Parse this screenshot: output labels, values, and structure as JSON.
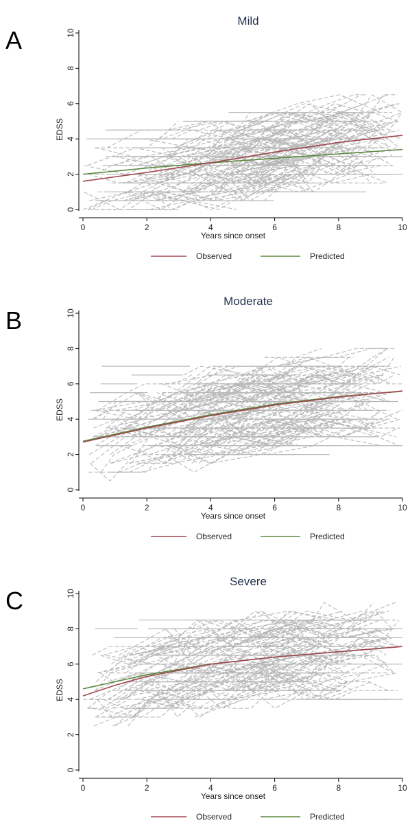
{
  "panels": [
    {
      "letter": "A",
      "chart_data": {
        "type": "line",
        "title": "Mild",
        "xlabel": "Years since onset",
        "ylabel": "EDSS",
        "xlim": [
          0,
          10
        ],
        "ylim": [
          0,
          10
        ],
        "xticks": [
          0,
          2,
          4,
          6,
          8,
          10
        ],
        "yticks": [
          0,
          2,
          4,
          6,
          8,
          10
        ],
        "series": [
          {
            "name": "Observed",
            "color": "#a0474f",
            "x": [
              0,
              2,
              4,
              6,
              8,
              10
            ],
            "y": [
              1.6,
              2.1,
              2.65,
              3.25,
              3.8,
              4.2
            ]
          },
          {
            "name": "Predicted",
            "color": "#5a8a3e",
            "x": [
              0,
              2,
              4,
              6,
              8,
              10
            ],
            "y": [
              2.0,
              2.35,
              2.65,
              2.9,
              3.15,
              3.4
            ]
          }
        ],
        "legend": "bottom",
        "background_trajectories": "gray dashed individual patient trajectories"
      }
    },
    {
      "letter": "B",
      "chart_data": {
        "type": "line",
        "title": "Moderate",
        "xlabel": "Years since onset",
        "ylabel": "EDSS",
        "xlim": [
          0,
          10
        ],
        "ylim": [
          0,
          10
        ],
        "xticks": [
          0,
          2,
          4,
          6,
          8,
          10
        ],
        "yticks": [
          0,
          2,
          4,
          6,
          8,
          10
        ],
        "series": [
          {
            "name": "Observed",
            "color": "#a0474f",
            "x": [
              0,
              2,
              4,
              6,
              8,
              10
            ],
            "y": [
              2.7,
              3.5,
              4.2,
              4.8,
              5.25,
              5.6
            ]
          },
          {
            "name": "Predicted",
            "color": "#5a8a3e",
            "x": [
              0,
              2,
              4,
              6,
              8,
              10
            ],
            "y": [
              2.75,
              3.55,
              4.25,
              4.85,
              5.28,
              5.58
            ]
          }
        ],
        "legend": "bottom",
        "background_trajectories": "gray dashed individual patient trajectories"
      }
    },
    {
      "letter": "C",
      "chart_data": {
        "type": "line",
        "title": "Severe",
        "xlabel": "Years since onset",
        "ylabel": "EDSS",
        "xlim": [
          0,
          10
        ],
        "ylim": [
          0,
          10
        ],
        "xticks": [
          0,
          2,
          4,
          6,
          8,
          10
        ],
        "yticks": [
          0,
          2,
          4,
          6,
          8,
          10
        ],
        "series": [
          {
            "name": "Observed",
            "color": "#a0474f",
            "x": [
              0,
              1,
              2,
              4,
              6,
              8,
              10
            ],
            "y": [
              4.2,
              4.8,
              5.3,
              6.0,
              6.4,
              6.7,
              7.0
            ]
          },
          {
            "name": "Predicted",
            "color": "#5a8a3e",
            "x": [
              0,
              1,
              2,
              4,
              6,
              8,
              10
            ],
            "y": [
              4.6,
              5.0,
              5.4,
              6.0,
              6.4,
              6.7,
              7.0
            ]
          }
        ],
        "legend": "bottom",
        "background_trajectories": "gray dashed individual patient trajectories"
      }
    }
  ]
}
